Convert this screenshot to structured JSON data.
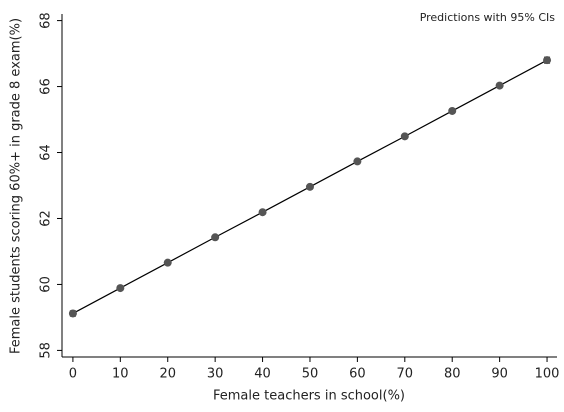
{
  "chart_data": {
    "type": "line",
    "annotation": "Predictions with 95% CIs",
    "x_label": "Female teachers in school(%)",
    "y_label": "Female students scoring 60%+ in grade 8 exam(%)",
    "x": [
      0,
      10,
      20,
      30,
      40,
      50,
      60,
      70,
      80,
      90,
      100
    ],
    "values": [
      59.12,
      59.89,
      60.66,
      61.43,
      62.19,
      62.96,
      63.73,
      64.49,
      65.26,
      66.03,
      66.8
    ],
    "errors": [
      0.08,
      0.06,
      0.05,
      0.04,
      0.03,
      0.03,
      0.03,
      0.04,
      0.05,
      0.06,
      0.09
    ],
    "color": "#555555",
    "xlim": [
      -2.3,
      102.1
    ],
    "xticks": [
      0,
      10,
      20,
      30,
      40,
      50,
      60,
      70,
      80,
      90,
      100
    ],
    "ylim": [
      57.8,
      68.2
    ],
    "yticks": [
      58,
      60,
      62,
      64,
      66,
      68
    ]
  }
}
